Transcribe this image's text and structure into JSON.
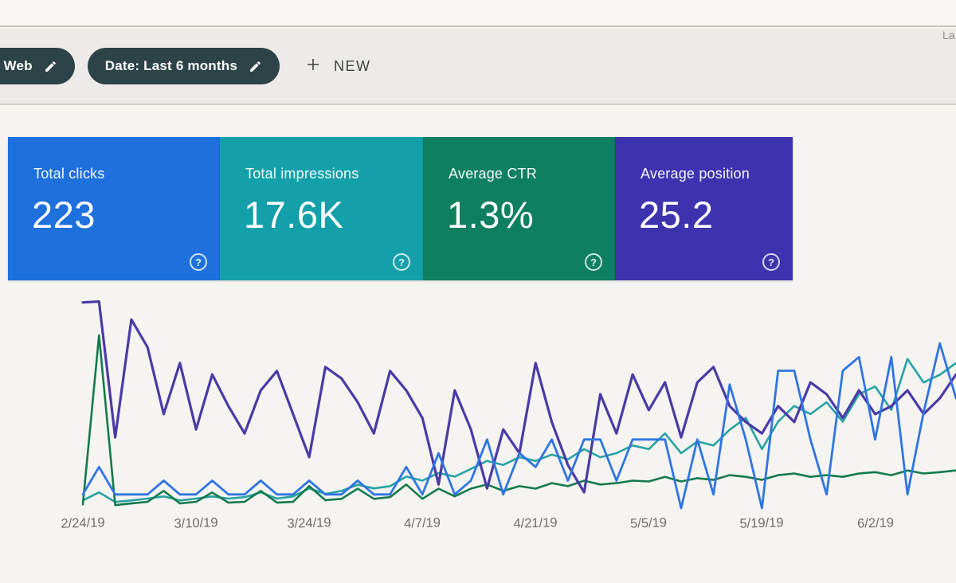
{
  "toolbar": {
    "chips": [
      {
        "label": "type: Web"
      },
      {
        "label": "Date: Last 6 months"
      }
    ],
    "new_button_label": "NEW",
    "right_partial_text": "La"
  },
  "metric_cards": [
    {
      "label": "Total clicks",
      "value": "223",
      "color": "#1e70dd"
    },
    {
      "label": "Total impressions",
      "value": "17.6K",
      "color": "#13a0aa"
    },
    {
      "label": "Average CTR",
      "value": "1.3%",
      "color": "#0e8060"
    },
    {
      "label": "Average position",
      "value": "25.2",
      "color": "#3d33ae"
    }
  ],
  "help_icon_glyph": "?",
  "chart_data": {
    "type": "line",
    "title": "",
    "xlabel": "",
    "ylabel": "",
    "grid": false,
    "legend": "none (series colors match metric cards)",
    "x_tick_labels": [
      "2/24/19",
      "3/10/19",
      "3/24/19",
      "4/7/19",
      "4/21/19",
      "5/5/19",
      "5/19/19",
      "6/2/19"
    ],
    "x_tick_indices": [
      0,
      7,
      14,
      21,
      28,
      35,
      42,
      49
    ],
    "x_note": "daily points Feb 23 2019 - Jun 11 2019, sampled every 2 days (55 points)",
    "series": [
      {
        "name": "Impressions",
        "color": "#27a2a4",
        "stroke_width": 2.6,
        "range": [
          0,
          600
        ],
        "values": [
          21,
          43,
          17,
          21,
          26,
          32,
          21,
          26,
          32,
          26,
          30,
          43,
          26,
          32,
          54,
          39,
          47,
          64,
          54,
          60,
          86,
          75,
          96,
          86,
          107,
          129,
          118,
          139,
          129,
          146,
          133,
          161,
          139,
          150,
          171,
          161,
          204,
          150,
          182,
          171,
          214,
          246,
          161,
          236,
          279,
          257,
          289,
          236,
          311,
          332,
          268,
          407,
          343,
          364,
          396
        ]
      },
      {
        "name": "CTR",
        "color": "#147a4c",
        "stroke_width": 2.6,
        "range": [
          0,
          8
        ],
        "values": [
          0.14,
          6.29,
          0.11,
          0.17,
          0.23,
          0.63,
          0.17,
          0.23,
          0.57,
          0.2,
          0.23,
          0.63,
          0.2,
          0.23,
          0.8,
          0.29,
          0.34,
          0.71,
          0.34,
          0.4,
          0.86,
          0.34,
          0.71,
          0.43,
          0.71,
          0.86,
          0.63,
          0.8,
          0.71,
          0.91,
          0.8,
          1.0,
          0.86,
          0.91,
          1.0,
          0.97,
          1.14,
          0.97,
          1.09,
          1.03,
          1.2,
          1.14,
          1.03,
          1.2,
          1.26,
          1.14,
          1.2,
          1.14,
          1.26,
          1.31,
          1.2,
          1.37,
          1.26,
          1.31,
          1.37
        ]
      },
      {
        "name": "Position",
        "color": "#4b3aa6",
        "stroke_width": 3.2,
        "range": [
          55,
          5
        ],
        "range_note": "inverted axis: lower position plots higher",
        "values": [
          8.2,
          8.0,
          38.9,
          12.1,
          18.4,
          33.6,
          22.0,
          37.1,
          24.6,
          31.8,
          38.0,
          28.2,
          23.8,
          33.6,
          43.4,
          22.9,
          25.5,
          30.9,
          38.0,
          23.8,
          28.2,
          34.5,
          49.6,
          28.2,
          37.1,
          50.5,
          37.1,
          42.5,
          22.0,
          35.4,
          45.2,
          51.4,
          29.1,
          38.0,
          24.6,
          32.7,
          26.4,
          38.9,
          26.4,
          22.9,
          31.8,
          35.4,
          38.0,
          31.8,
          35.4,
          26.4,
          29.1,
          34.5,
          28.2,
          33.6,
          31.8,
          28.2,
          33.6,
          30.0,
          24.6
        ]
      },
      {
        "name": "Clicks",
        "color": "#2f75e2",
        "stroke_width": 2.8,
        "range": [
          0,
          16
        ],
        "values": [
          1,
          3,
          1,
          1,
          1,
          2,
          1,
          1,
          2,
          1,
          1,
          2,
          1,
          1,
          2,
          1,
          1,
          2,
          1,
          1,
          3,
          1,
          4,
          1,
          2,
          5,
          1,
          4,
          3,
          5,
          2,
          5,
          5,
          2,
          5,
          5,
          5,
          0,
          5,
          1,
          9,
          5,
          0,
          10,
          10,
          5,
          1,
          10,
          11,
          5,
          11,
          1,
          7,
          12,
          8
        ]
      }
    ]
  }
}
